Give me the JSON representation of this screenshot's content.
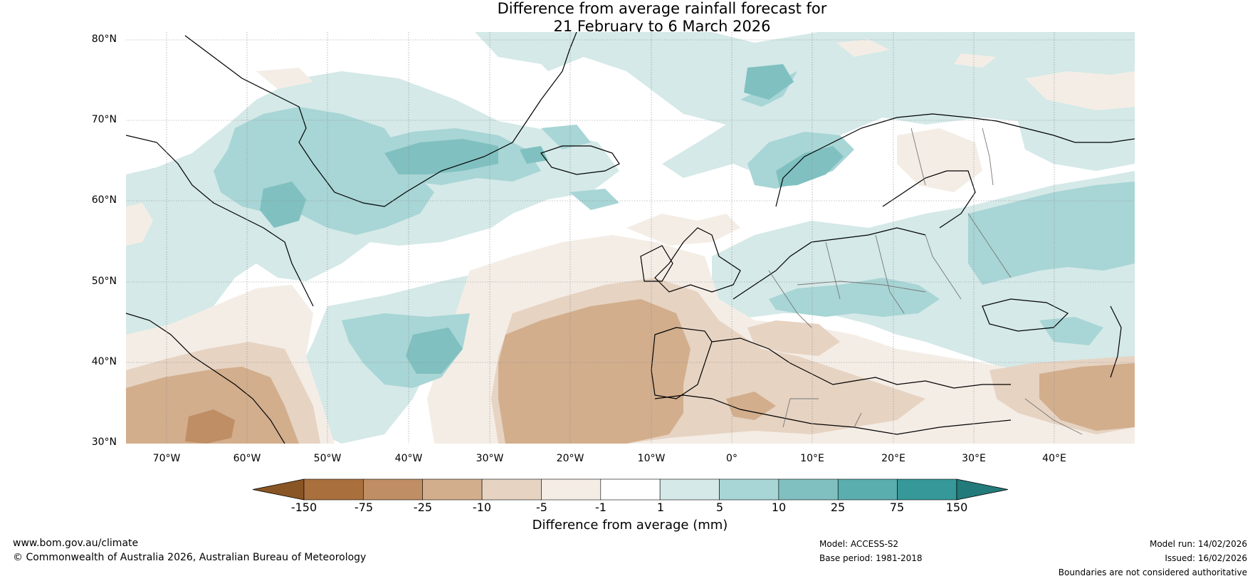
{
  "title": {
    "line1": "Difference from average rainfall forecast for",
    "line2": "21 February to 6 March 2026"
  },
  "map": {
    "lat_labels": [
      "80°N",
      "70°N",
      "60°N",
      "50°N",
      "40°N",
      "30°N"
    ],
    "lon_labels": [
      "70°W",
      "60°W",
      "50°W",
      "40°W",
      "30°W",
      "20°W",
      "10°W",
      "0°",
      "10°E",
      "20°E",
      "30°E",
      "40°E"
    ],
    "extent": {
      "lon_min": -75,
      "lon_max": 50,
      "lat_min": 30,
      "lat_max": 81
    }
  },
  "colorbar": {
    "ticks": [
      "-150",
      "-75",
      "-25",
      "-10",
      "-5",
      "-1",
      "1",
      "5",
      "10",
      "25",
      "75",
      "150"
    ],
    "colors": [
      "#8a5524",
      "#a96f3c",
      "#c08e64",
      "#d2ae8d",
      "#e6d3c2",
      "#f4ede6",
      "#ffffff",
      "#d4e9e8",
      "#a8d5d5",
      "#80c0c0",
      "#5aaeae",
      "#369898",
      "#237a7a"
    ],
    "label": "Difference from average (mm)"
  },
  "footer": {
    "website": "www.bom.gov.au/climate",
    "copyright": "© Commonwealth of Australia 2026, Australian Bureau of Meteorology",
    "model": "Model: ACCESS-S2",
    "base_period": "Base period: 1981-2018",
    "model_run": "Model run: 14/02/2026",
    "issued": "Issued: 16/02/2026",
    "disclaimer": "Boundaries are not considered authoritative"
  }
}
